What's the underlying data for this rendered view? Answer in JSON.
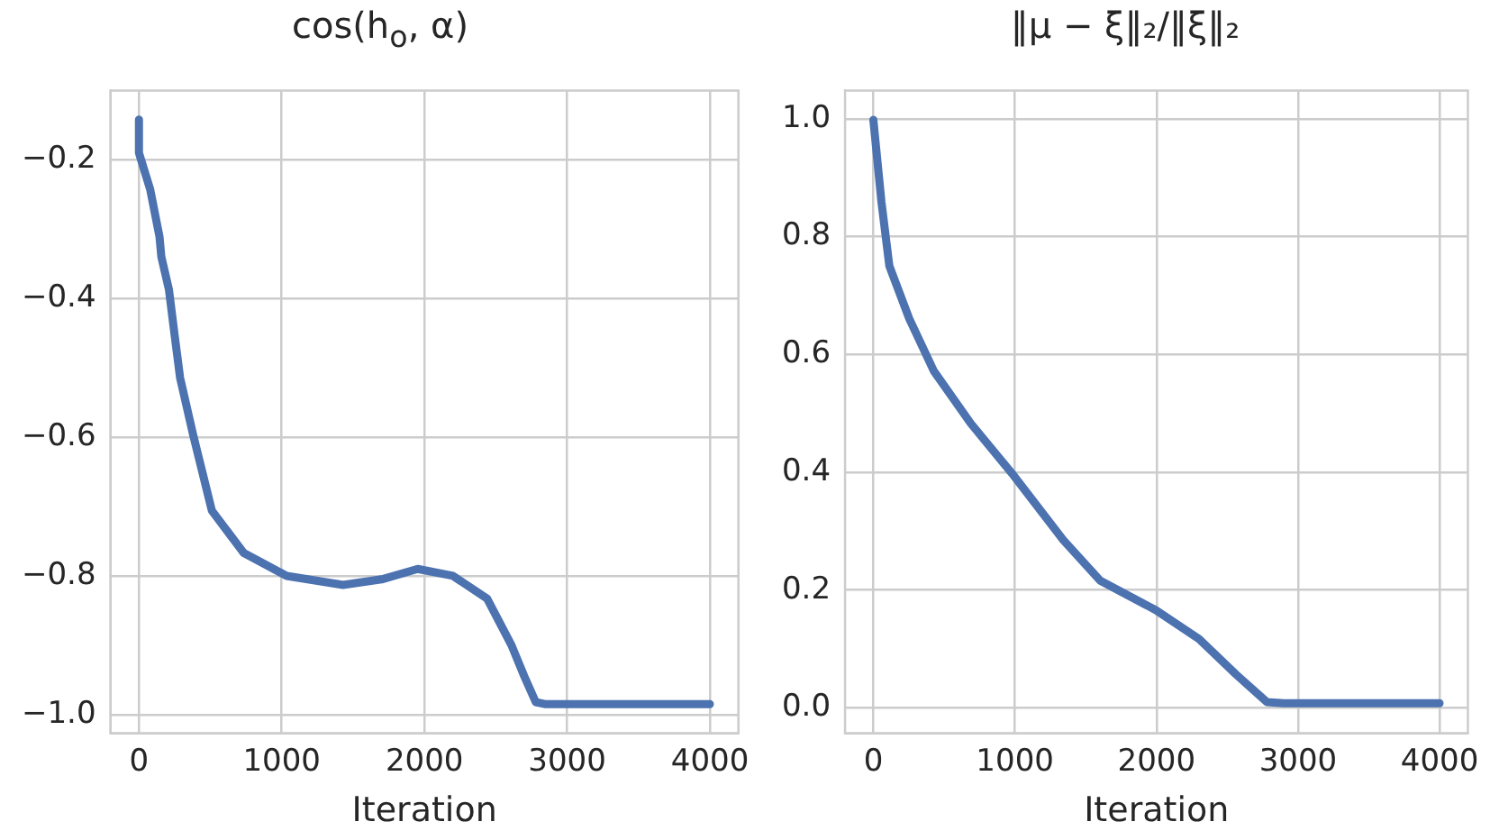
{
  "chart_data": [
    {
      "type": "line",
      "title": "cos(h$_{o}$, α)",
      "xlabel": "Iteration",
      "x": [
        0,
        0,
        79,
        144,
        157,
        210,
        250,
        288,
        380,
        511,
        734,
        1035,
        1430,
        1700,
        1953,
        2200,
        2440,
        2610,
        2700,
        2780,
        2850,
        3200,
        3600,
        4000
      ],
      "series": [
        {
          "color": "#4c72b0",
          "values": [
            -0.142,
            -0.19,
            -0.243,
            -0.311,
            -0.34,
            -0.387,
            -0.453,
            -0.514,
            -0.597,
            -0.706,
            -0.767,
            -0.8,
            -0.813,
            -0.805,
            -0.79,
            -0.8,
            -0.833,
            -0.9,
            -0.945,
            -0.982,
            -0.985,
            -0.985,
            -0.985,
            -0.985
          ]
        }
      ],
      "xlim": [
        -200,
        4200
      ],
      "ylim": [
        -1.027,
        -0.1
      ],
      "xticks": [
        0,
        1000,
        2000,
        3000,
        4000
      ],
      "yticks": [
        {
          "value": -1.0,
          "label": "−1.0"
        },
        {
          "value": -0.8,
          "label": "−0.8"
        },
        {
          "value": -0.6,
          "label": "−0.6"
        },
        {
          "value": -0.4,
          "label": "−0.4"
        },
        {
          "value": -0.2,
          "label": "−0.2"
        }
      ],
      "grid": true
    },
    {
      "type": "line",
      "title": "‖μ − ξ‖₂/‖ξ‖₂",
      "xlabel": "Iteration",
      "x": [
        0,
        57,
        113,
        253,
        427,
        688,
        993,
        1342,
        1603,
        1996,
        2301,
        2562,
        2780,
        2900,
        3500,
        4000
      ],
      "series": [
        {
          "color": "#4c72b0",
          "values": [
            0.998,
            0.859,
            0.75,
            0.661,
            0.572,
            0.483,
            0.394,
            0.285,
            0.216,
            0.166,
            0.117,
            0.057,
            0.01,
            0.008,
            0.008,
            0.008
          ]
        }
      ],
      "xlim": [
        -200,
        4200
      ],
      "ylim": [
        -0.043,
        1.048
      ],
      "xticks": [
        0,
        1000,
        2000,
        3000,
        4000
      ],
      "yticks": [
        {
          "value": 0,
          "label": "0.0"
        },
        {
          "value": 0.2,
          "label": "0.2"
        },
        {
          "value": 0.4,
          "label": "0.4"
        },
        {
          "value": 0.6,
          "label": "0.6"
        },
        {
          "value": 0.8,
          "label": "0.8"
        },
        {
          "value": 1.0,
          "label": "1.0"
        }
      ],
      "grid": true
    }
  ]
}
